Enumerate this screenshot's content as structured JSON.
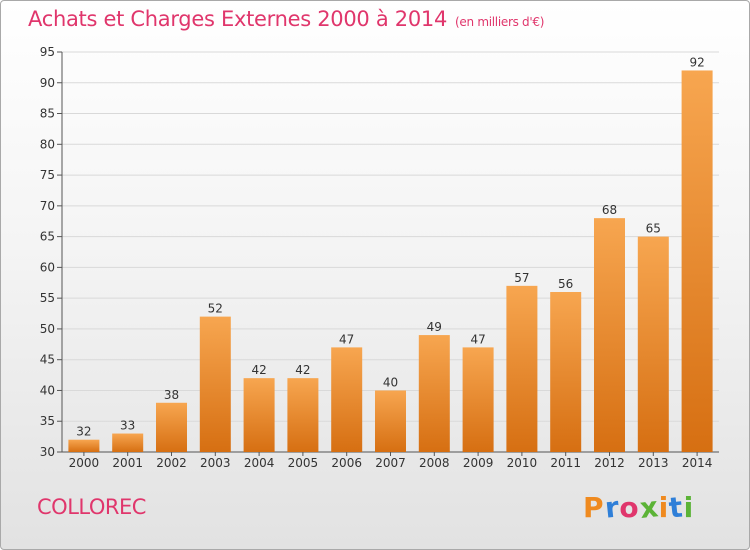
{
  "title": {
    "main": "Achats et Charges Externes 2000 à 2014",
    "unit": "(en milliers d'€)"
  },
  "commune": "COLLOREC",
  "logo": {
    "text": "Proxiti",
    "letter_colors": [
      "#ef8a1f",
      "#2f7fd8",
      "#e0366c",
      "#5bb336",
      "#ef8a1f",
      "#2f7fd8",
      "#5bb336"
    ]
  },
  "colors": {
    "title": "#e0366c",
    "bar_top": "#f7a650",
    "bar_bottom": "#d66f12",
    "grid": "#d9d9d9"
  },
  "chart_data": {
    "type": "bar",
    "categories": [
      "2000",
      "2001",
      "2002",
      "2003",
      "2004",
      "2005",
      "2006",
      "2007",
      "2008",
      "2009",
      "2010",
      "2011",
      "2012",
      "2013",
      "2014"
    ],
    "values": [
      32,
      33,
      38,
      52,
      42,
      42,
      47,
      40,
      49,
      47,
      57,
      56,
      68,
      65,
      92
    ],
    "data_labels": [
      "32",
      "33",
      "38",
      "52",
      "42",
      "42",
      "47",
      "40",
      "49",
      "47",
      "57",
      "56",
      "68",
      "65",
      "92"
    ],
    "y_ticks": [
      "30",
      "35",
      "40",
      "45",
      "50",
      "55",
      "60",
      "65",
      "70",
      "75",
      "80",
      "85",
      "90",
      "95"
    ],
    "ylim": [
      30,
      95
    ],
    "grid": true,
    "legend": "none",
    "title": "Achats et Charges Externes 2000 à 2014",
    "xlabel": "",
    "ylabel": ""
  }
}
